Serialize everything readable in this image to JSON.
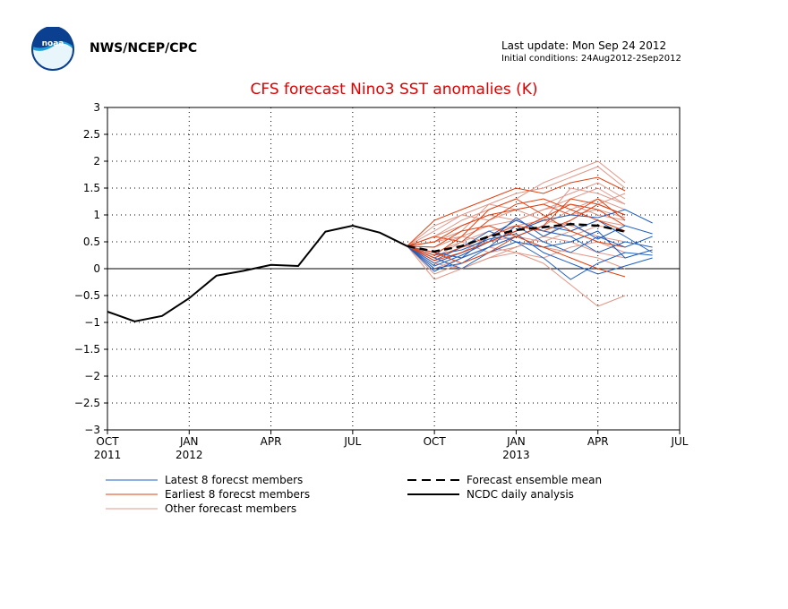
{
  "header": {
    "org": "NWS/NCEP/CPC",
    "last_update": "Last update: Mon Sep 24 2012",
    "initial_conditions": "Initial conditions: 24Aug2012-2Sep2012",
    "logo_text": "noaa"
  },
  "chart_data": {
    "type": "line",
    "title": "CFS forecast Nino3 SST anomalies (K)",
    "xlabel": "",
    "ylabel": "",
    "ylim": [
      -3,
      3
    ],
    "grid": true,
    "x_ticks": [
      {
        "month": 0,
        "label": "OCT",
        "sublabel": "2011"
      },
      {
        "month": 3,
        "label": "JAN",
        "sublabel": "2012"
      },
      {
        "month": 6,
        "label": "APR",
        "sublabel": ""
      },
      {
        "month": 9,
        "label": "JUL",
        "sublabel": ""
      },
      {
        "month": 12,
        "label": "OCT",
        "sublabel": ""
      },
      {
        "month": 15,
        "label": "JAN",
        "sublabel": "2013"
      },
      {
        "month": 18,
        "label": "APR",
        "sublabel": ""
      },
      {
        "month": 21,
        "label": "JUL",
        "sublabel": ""
      }
    ],
    "y_ticks": [
      "3",
      "2.5",
      "2",
      "1.5",
      "1",
      "0.5",
      "0",
      "−0.5",
      "−1",
      "−1.5",
      "−2",
      "−2.5",
      "−3"
    ],
    "observed": {
      "name": "NCDC daily analysis",
      "color": "#000000",
      "x": [
        0,
        1,
        2,
        3,
        4,
        5,
        6,
        7,
        8,
        9,
        10,
        11
      ],
      "y": [
        -0.8,
        -0.98,
        -0.88,
        -0.55,
        -0.13,
        -0.04,
        0.07,
        0.05,
        0.69,
        0.8,
        0.67,
        0.42
      ]
    },
    "ensemble_mean": {
      "name": "Forecast ensemble mean",
      "color": "#000000",
      "x": [
        11,
        12,
        13,
        14,
        15,
        16,
        17,
        18,
        19
      ],
      "y": [
        0.42,
        0.32,
        0.42,
        0.6,
        0.72,
        0.77,
        0.83,
        0.8,
        0.69
      ]
    },
    "member_groups": [
      {
        "name": "Latest 8 forecst members",
        "color": "#1f5fc0",
        "x": [
          11,
          12,
          13,
          14,
          15,
          16,
          17,
          18,
          19,
          20
        ],
        "members": [
          [
            0.42,
            0.1,
            0.3,
            0.5,
            0.7,
            0.9,
            1.0,
            0.95,
            1.1,
            0.85
          ],
          [
            0.42,
            0.0,
            0.1,
            0.4,
            0.8,
            0.5,
            0.3,
            0.6,
            0.4,
            0.6
          ],
          [
            0.42,
            0.2,
            0.0,
            0.3,
            0.5,
            0.2,
            -0.2,
            0.1,
            0.3,
            0.25
          ],
          [
            0.42,
            0.3,
            0.2,
            0.6,
            0.9,
            0.7,
            0.6,
            0.3,
            0.5,
            0.4
          ],
          [
            0.42,
            -0.05,
            0.2,
            0.4,
            0.6,
            0.8,
            0.7,
            0.9,
            0.6,
            0.3
          ],
          [
            0.42,
            0.15,
            0.4,
            0.7,
            0.5,
            0.4,
            0.5,
            0.7,
            0.2,
            0.35
          ],
          [
            0.42,
            0.25,
            0.35,
            0.55,
            0.65,
            0.3,
            0.1,
            -0.1,
            0.05,
            0.2
          ],
          [
            0.42,
            0.05,
            0.25,
            0.5,
            0.95,
            0.6,
            0.85,
            0.55,
            0.8,
            0.65
          ]
        ]
      },
      {
        "name": "Earliest 8 forecst members",
        "color": "#e04010",
        "x": [
          11,
          12,
          13,
          14,
          15,
          16,
          17,
          18,
          19
        ],
        "members": [
          [
            0.42,
            0.9,
            1.1,
            1.3,
            1.5,
            1.4,
            1.6,
            1.7,
            1.45
          ],
          [
            0.42,
            0.5,
            0.8,
            1.0,
            1.1,
            1.2,
            1.0,
            1.3,
            0.9
          ],
          [
            0.42,
            0.2,
            0.4,
            0.6,
            0.8,
            0.7,
            0.9,
            1.2,
            1.0
          ],
          [
            0.42,
            0.3,
            0.1,
            0.3,
            0.6,
            0.4,
            0.2,
            0.0,
            -0.15
          ],
          [
            0.42,
            0.6,
            0.5,
            0.9,
            1.2,
            1.3,
            1.1,
            0.9,
            0.7
          ],
          [
            0.42,
            0.15,
            0.3,
            0.5,
            0.7,
            0.95,
            1.2,
            1.1,
            0.8
          ],
          [
            0.42,
            0.4,
            0.7,
            0.8,
            0.6,
            0.8,
            1.3,
            1.2,
            1.0
          ],
          [
            0.42,
            0.25,
            0.6,
            1.1,
            1.3,
            1.0,
            0.7,
            0.5,
            0.4
          ]
        ]
      },
      {
        "name": "Other forecast members",
        "color": "#e09888",
        "x": [
          11,
          12,
          13,
          14,
          15,
          16,
          17,
          18,
          19
        ],
        "members": [
          [
            0.42,
            0.6,
            0.9,
            1.1,
            1.3,
            1.6,
            1.8,
            2.0,
            1.6
          ],
          [
            0.42,
            0.7,
            1.0,
            1.2,
            1.4,
            1.5,
            1.7,
            1.9,
            1.5
          ],
          [
            0.42,
            0.1,
            0.3,
            0.6,
            0.9,
            1.1,
            1.3,
            1.5,
            1.2
          ],
          [
            0.42,
            -0.2,
            0.0,
            0.2,
            0.4,
            0.6,
            0.5,
            0.3,
            0.2
          ],
          [
            0.42,
            0.3,
            0.5,
            0.7,
            0.8,
            0.9,
            1.0,
            1.1,
            0.95
          ],
          [
            0.42,
            0.5,
            0.6,
            0.8,
            0.9,
            0.7,
            0.6,
            0.8,
            0.7
          ],
          [
            0.42,
            0.0,
            0.2,
            0.4,
            0.3,
            0.1,
            -0.3,
            -0.7,
            -0.5
          ],
          [
            0.42,
            0.2,
            0.4,
            0.5,
            0.6,
            0.8,
            1.1,
            1.3,
            1.1
          ],
          [
            0.42,
            0.8,
            1.0,
            0.9,
            1.1,
            1.2,
            1.4,
            1.6,
            1.3
          ],
          [
            0.42,
            -0.1,
            0.1,
            0.3,
            0.5,
            0.4,
            0.3,
            0.2,
            0.0
          ],
          [
            0.42,
            0.4,
            0.6,
            0.5,
            0.7,
            0.9,
            0.8,
            0.6,
            0.5
          ],
          [
            0.42,
            0.3,
            0.2,
            0.4,
            0.6,
            0.5,
            0.7,
            0.9,
            0.8
          ],
          [
            0.42,
            0.6,
            0.8,
            1.0,
            0.9,
            1.1,
            1.2,
            1.0,
            0.9
          ],
          [
            0.42,
            0.1,
            0.0,
            0.2,
            0.3,
            0.2,
            0.4,
            0.5,
            0.3
          ],
          [
            0.42,
            0.5,
            0.7,
            1.2,
            1.1,
            0.9,
            1.5,
            1.4,
            1.2
          ],
          [
            0.42,
            0.2,
            0.5,
            0.3,
            0.4,
            0.6,
            0.9,
            1.2,
            1.4
          ]
        ]
      }
    ],
    "legend": [
      {
        "label": "Latest 8 forecst members",
        "color": "#1f5fc0",
        "style": "solid"
      },
      {
        "label": "Earliest 8 forecst members",
        "color": "#e04010",
        "style": "solid"
      },
      {
        "label": "Other forecast members",
        "color": "#e09888",
        "style": "solid"
      },
      {
        "label": "Forecast ensemble mean",
        "color": "#000000",
        "style": "dashed"
      },
      {
        "label": "NCDC daily analysis",
        "color": "#000000",
        "style": "solid"
      }
    ]
  }
}
